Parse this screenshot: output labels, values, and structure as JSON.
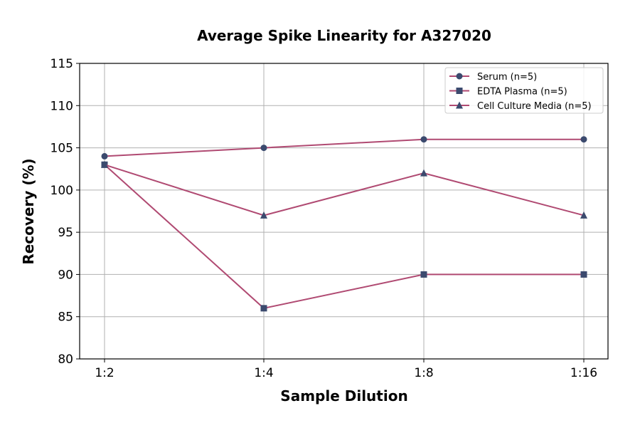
{
  "chart_data": {
    "type": "line",
    "title": "Average Spike Linearity for A327020",
    "xlabel": "Sample Dilution",
    "ylabel": "Recovery (%)",
    "categories": [
      "1:2",
      "1:4",
      "1:8",
      "1:16"
    ],
    "ylim": [
      80,
      115
    ],
    "yticks": [
      80,
      85,
      90,
      95,
      100,
      105,
      110,
      115
    ],
    "grid": true,
    "legend_position": "top-right",
    "line_color": "#b04a72",
    "marker_color": "#3b4a6e",
    "series": [
      {
        "name": "Serum (n=5)",
        "marker": "circle",
        "values": [
          104,
          105,
          106,
          106
        ]
      },
      {
        "name": "EDTA Plasma (n=5)",
        "marker": "square",
        "values": [
          103,
          86,
          90,
          90
        ]
      },
      {
        "name": "Cell Culture Media (n=5)",
        "marker": "triangle",
        "values": [
          103,
          97,
          102,
          97
        ]
      }
    ]
  }
}
